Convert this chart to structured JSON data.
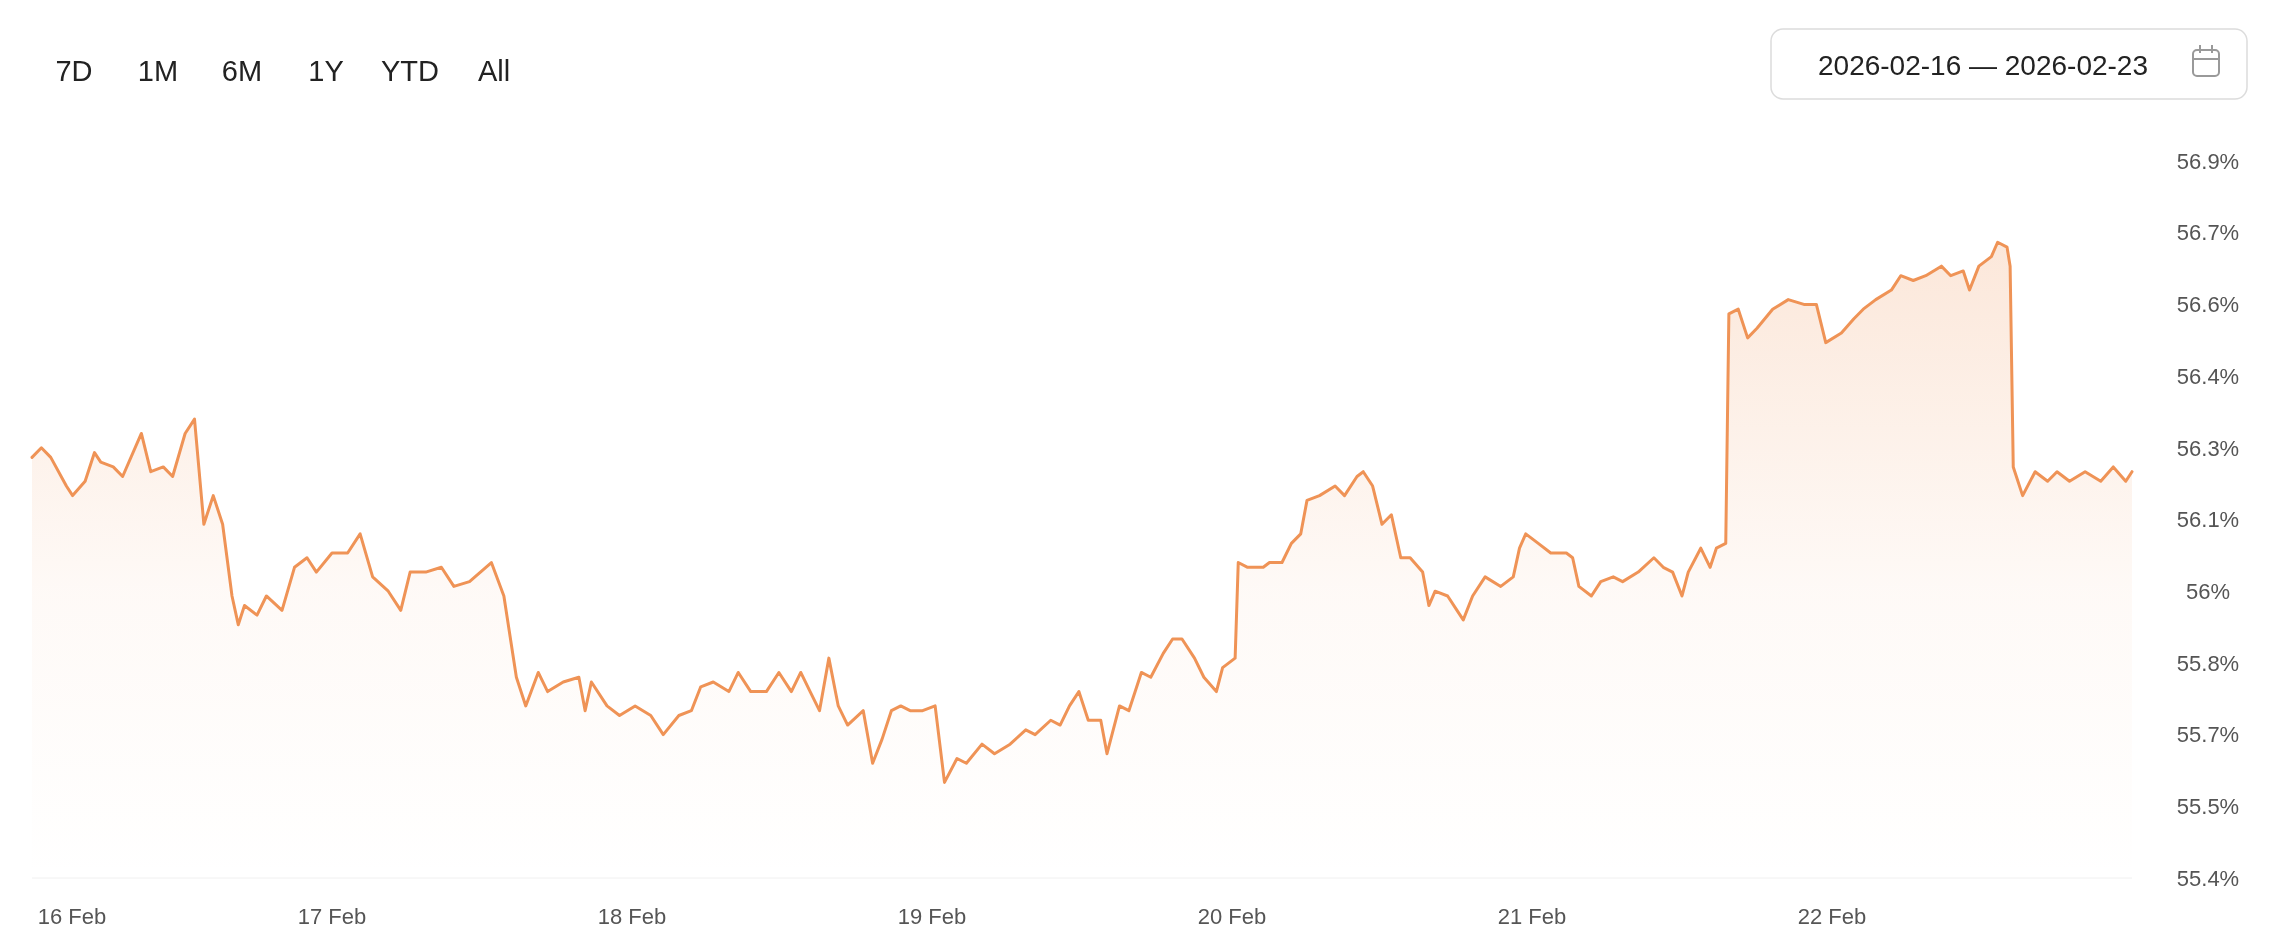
{
  "chart_data": {
    "type": "area",
    "annotations": [
      "7D",
      "1M",
      "6M",
      "1Y",
      "YTD",
      "All",
      "2026-02-16 — 2026-02-23"
    ],
    "xlim": [
      "2026-02-16",
      "2026-02-23"
    ],
    "xticks": [
      {
        "value": "2026-02-16",
        "label": "16 Feb"
      },
      {
        "value": "2026-02-17",
        "label": "17 Feb"
      },
      {
        "value": "2026-02-18",
        "label": "18 Feb"
      },
      {
        "value": "2026-02-19",
        "label": "19 Feb"
      },
      {
        "value": "2026-02-20",
        "label": "20 Feb"
      },
      {
        "value": "2026-02-21",
        "label": "21 Feb"
      },
      {
        "value": "2026-02-22",
        "label": "22 Feb"
      }
    ],
    "ylim": [
      55.4,
      56.9
    ],
    "yticks": [
      {
        "value": 55.4,
        "label": "55.4%"
      },
      {
        "value": 55.55,
        "label": "55.5%"
      },
      {
        "value": 55.7,
        "label": "55.7%"
      },
      {
        "value": 55.85,
        "label": "55.8%"
      },
      {
        "value": 56.0,
        "label": "56%"
      },
      {
        "value": 56.15,
        "label": "56.1%"
      },
      {
        "value": 56.3,
        "label": "56.3%"
      },
      {
        "value": 56.45,
        "label": "56.4%"
      },
      {
        "value": 56.6,
        "label": "56.6%"
      },
      {
        "value": 56.75,
        "label": "56.7%"
      },
      {
        "value": 56.9,
        "label": "56.9%"
      }
    ],
    "grid": false,
    "series": [
      {
        "color": "#ef9356",
        "x": [
          "2026-02-16T00:00",
          "2026-02-16T00:45",
          "2026-02-16T01:30",
          "2026-02-16T02:45",
          "2026-02-16T03:15",
          "2026-02-16T04:15",
          "2026-02-16T05:00",
          "2026-02-16T05:30",
          "2026-02-16T06:30",
          "2026-02-16T07:15",
          "2026-02-16T08:45",
          "2026-02-16T09:30",
          "2026-02-16T10:30",
          "2026-02-16T11:15",
          "2026-02-16T12:15",
          "2026-02-16T13:00",
          "2026-02-16T13:45",
          "2026-02-16T14:30",
          "2026-02-16T15:15",
          "2026-02-16T16:00",
          "2026-02-16T16:30",
          "2026-02-16T17:00",
          "2026-02-16T18:00",
          "2026-02-16T18:45",
          "2026-02-16T20:00",
          "2026-02-16T21:00",
          "2026-02-16T22:00",
          "2026-02-16T22:45",
          "2026-02-17T00:00",
          "2026-02-17T01:15",
          "2026-02-17T02:15",
          "2026-02-17T03:15",
          "2026-02-17T04:30",
          "2026-02-17T05:30",
          "2026-02-17T06:15",
          "2026-02-17T07:30",
          "2026-02-17T08:45",
          "2026-02-17T09:45",
          "2026-02-17T11:00",
          "2026-02-17T12:45",
          "2026-02-17T13:45",
          "2026-02-17T14:45",
          "2026-02-17T15:30",
          "2026-02-17T16:30",
          "2026-02-17T17:15",
          "2026-02-17T18:30",
          "2026-02-17T19:45",
          "2026-02-17T20:15",
          "2026-02-17T20:45",
          "2026-02-17T22:00",
          "2026-02-17T23:00",
          "2026-02-18T00:15",
          "2026-02-18T01:30",
          "2026-02-18T02:30",
          "2026-02-18T03:45",
          "2026-02-18T04:45",
          "2026-02-18T05:30",
          "2026-02-18T06:30",
          "2026-02-18T07:45",
          "2026-02-18T08:30",
          "2026-02-18T09:30",
          "2026-02-18T10:45",
          "2026-02-18T11:45",
          "2026-02-18T12:45",
          "2026-02-18T13:30",
          "2026-02-18T14:15",
          "2026-02-18T15:00",
          "2026-02-18T15:45",
          "2026-02-18T16:30",
          "2026-02-18T17:15",
          "2026-02-18T18:30",
          "2026-02-18T19:15",
          "2026-02-18T20:00",
          "2026-02-18T20:45",
          "2026-02-18T21:30",
          "2026-02-18T22:15",
          "2026-02-18T23:15",
          "2026-02-19T00:15",
          "2026-02-19T01:00",
          "2026-02-19T02:00",
          "2026-02-19T02:45",
          "2026-02-19T04:00",
          "2026-02-19T05:00",
          "2026-02-19T06:15",
          "2026-02-19T07:30",
          "2026-02-19T08:15",
          "2026-02-19T09:30",
          "2026-02-19T10:15",
          "2026-02-19T11:00",
          "2026-02-19T11:45",
          "2026-02-19T12:30",
          "2026-02-19T13:30",
          "2026-02-19T14:00",
          "2026-02-19T15:00",
          "2026-02-19T15:45",
          "2026-02-19T16:45",
          "2026-02-19T17:30",
          "2026-02-19T18:30",
          "2026-02-19T19:15",
          "2026-02-19T20:00",
          "2026-02-19T21:00",
          "2026-02-19T21:45",
          "2026-02-19T22:45",
          "2026-02-19T23:15",
          "2026-02-20T00:15",
          "2026-02-20T00:30",
          "2026-02-20T01:15",
          "2026-02-20T02:30",
          "2026-02-20T03:00",
          "2026-02-20T04:00",
          "2026-02-20T04:45",
          "2026-02-20T05:30",
          "2026-02-20T06:00",
          "2026-02-20T07:00",
          "2026-02-20T08:15",
          "2026-02-20T09:00",
          "2026-02-20T10:00",
          "2026-02-20T10:30",
          "2026-02-20T11:15",
          "2026-02-20T12:00",
          "2026-02-20T12:45",
          "2026-02-20T13:30",
          "2026-02-20T14:15",
          "2026-02-20T15:15",
          "2026-02-20T15:45",
          "2026-02-20T16:15",
          "2026-02-20T17:15",
          "2026-02-20T18:00",
          "2026-02-20T18:30",
          "2026-02-20T19:15",
          "2026-02-20T20:15",
          "2026-02-20T21:30",
          "2026-02-20T22:30",
          "2026-02-20T23:00",
          "2026-02-20T23:30",
          "2026-02-21T00:30",
          "2026-02-21T01:30",
          "2026-02-21T02:45",
          "2026-02-21T03:15",
          "2026-02-21T03:45",
          "2026-02-21T04:45",
          "2026-02-21T05:30",
          "2026-02-21T06:30",
          "2026-02-21T07:15",
          "2026-02-21T08:30",
          "2026-02-21T09:45",
          "2026-02-21T10:30",
          "2026-02-21T11:15",
          "2026-02-21T12:00",
          "2026-02-21T12:30",
          "2026-02-21T13:30",
          "2026-02-21T14:15",
          "2026-02-21T14:45",
          "2026-02-21T15:30",
          "2026-02-21T15:45",
          "2026-02-21T16:30",
          "2026-02-21T17:15",
          "2026-02-21T18:00",
          "2026-02-21T19:15",
          "2026-02-21T20:30",
          "2026-02-21T21:45",
          "2026-02-21T22:45",
          "2026-02-21T23:30",
          "2026-02-22T00:45",
          "2026-02-22T01:45",
          "2026-02-22T02:30",
          "2026-02-22T03:30",
          "2026-02-22T04:45",
          "2026-02-22T05:30",
          "2026-02-22T06:30",
          "2026-02-22T07:30",
          "2026-02-22T08:45",
          "2026-02-22T09:30",
          "2026-02-22T10:30",
          "2026-02-22T11:00",
          "2026-02-22T11:45",
          "2026-02-22T12:45",
          "2026-02-22T13:15",
          "2026-02-22T14:00",
          "2026-02-22T14:15",
          "2026-02-22T14:30",
          "2026-02-22T15:15",
          "2026-02-22T16:15",
          "2026-02-22T17:15",
          "2026-02-22T18:00",
          "2026-02-22T19:00",
          "2026-02-22T20:15",
          "2026-02-22T21:30",
          "2026-02-22T22:30",
          "2026-02-22T23:30",
          "2026-02-23T00:00"
        ],
        "values": [
          56.28,
          56.3,
          56.28,
          56.22,
          56.2,
          56.23,
          56.29,
          56.27,
          56.26,
          56.24,
          56.33,
          56.25,
          56.26,
          56.24,
          56.33,
          56.36,
          56.14,
          56.2,
          56.14,
          55.99,
          55.93,
          55.97,
          55.95,
          55.99,
          55.96,
          56.05,
          56.07,
          56.04,
          56.08,
          56.08,
          56.12,
          56.03,
          56.0,
          55.96,
          56.04,
          56.04,
          56.05,
          56.01,
          56.02,
          56.06,
          55.99,
          55.82,
          55.76,
          55.83,
          55.79,
          55.81,
          55.82,
          55.75,
          55.81,
          55.76,
          55.74,
          55.76,
          55.74,
          55.7,
          55.74,
          55.75,
          55.8,
          55.81,
          55.79,
          55.83,
          55.79,
          55.79,
          55.83,
          55.79,
          55.83,
          55.79,
          55.75,
          55.86,
          55.76,
          55.72,
          55.75,
          55.64,
          55.69,
          55.75,
          55.76,
          55.75,
          55.75,
          55.76,
          55.6,
          55.65,
          55.64,
          55.68,
          55.66,
          55.68,
          55.71,
          55.7,
          55.73,
          55.72,
          55.76,
          55.79,
          55.73,
          55.73,
          55.66,
          55.76,
          55.75,
          55.83,
          55.82,
          55.87,
          55.9,
          55.9,
          55.86,
          55.82,
          55.79,
          55.84,
          55.86,
          56.06,
          56.05,
          56.05,
          56.06,
          56.06,
          56.1,
          56.12,
          56.19,
          56.2,
          56.22,
          56.2,
          56.24,
          56.25,
          56.22,
          56.14,
          56.16,
          56.07,
          56.07,
          56.04,
          55.97,
          56.0,
          55.99,
          55.96,
          55.94,
          55.99,
          56.03,
          56.01,
          56.03,
          56.09,
          56.12,
          56.1,
          56.08,
          56.08,
          56.07,
          56.01,
          55.99,
          56.02,
          56.03,
          56.02,
          56.04,
          56.07,
          56.05,
          56.04,
          55.99,
          56.04,
          56.09,
          56.05,
          56.09,
          56.1,
          56.58,
          56.59,
          56.53,
          56.55,
          56.59,
          56.61,
          56.6,
          56.6,
          56.52,
          56.54,
          56.57,
          56.59,
          56.61,
          56.63,
          56.66,
          56.65,
          56.66,
          56.68,
          56.66,
          56.67,
          56.63,
          56.68,
          56.7,
          56.73,
          56.72,
          56.68,
          56.26,
          56.2,
          56.25,
          56.23,
          56.25,
          56.23,
          56.25,
          56.23,
          56.26,
          56.23,
          56.25
        ]
      }
    ]
  }
}
